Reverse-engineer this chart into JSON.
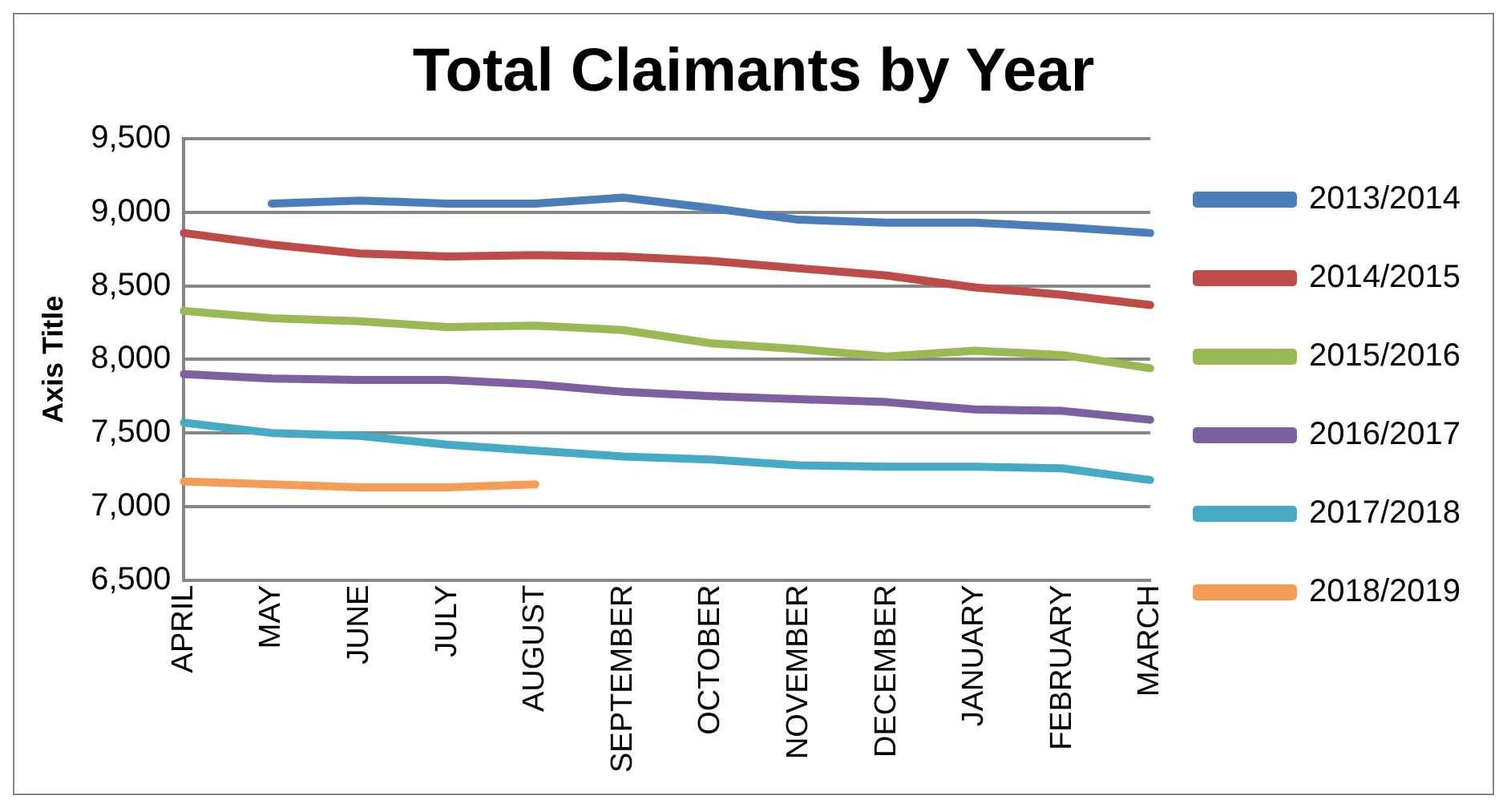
{
  "chart_data": {
    "type": "line",
    "title": "Total Claimants by Year",
    "ylabel": "Axis Title",
    "categories": [
      "APRIL",
      "MAY",
      "JUNE",
      "JULY",
      "AUGUST",
      "SEPTEMBER",
      "OCTOBER",
      "NOVEMBER",
      "DECEMBER",
      "JANUARY",
      "FEBRUARY",
      "MARCH"
    ],
    "series": [
      {
        "name": "2013/2014",
        "color": "#4a7ebb",
        "values": [
          null,
          9060,
          9080,
          9060,
          9060,
          9100,
          9030,
          8950,
          8930,
          8930,
          8900,
          8860
        ]
      },
      {
        "name": "2014/2015",
        "color": "#be4b48",
        "values": [
          8860,
          8780,
          8720,
          8700,
          8710,
          8700,
          8670,
          8620,
          8570,
          8490,
          8440,
          8370
        ]
      },
      {
        "name": "2015/2016",
        "color": "#98b954",
        "values": [
          8330,
          8280,
          8260,
          8220,
          8230,
          8200,
          8110,
          8070,
          8020,
          8060,
          8030,
          7940
        ]
      },
      {
        "name": "2016/2017",
        "color": "#7d60a0",
        "values": [
          7900,
          7870,
          7860,
          7860,
          7830,
          7780,
          7750,
          7730,
          7710,
          7660,
          7650,
          7590
        ]
      },
      {
        "name": "2017/2018",
        "color": "#46aac5",
        "values": [
          7570,
          7500,
          7480,
          7420,
          7380,
          7340,
          7320,
          7280,
          7270,
          7270,
          7260,
          7180
        ]
      },
      {
        "name": "2018/2019",
        "color": "#f59d56",
        "values": [
          7170,
          7150,
          7130,
          7130,
          7150,
          null,
          null,
          null,
          null,
          null,
          null,
          null
        ]
      }
    ],
    "ylim": [
      6500,
      9500
    ],
    "yticks": [
      {
        "value": 6500,
        "label": "6,500"
      },
      {
        "value": 7000,
        "label": "7,000"
      },
      {
        "value": 7500,
        "label": "7,500"
      },
      {
        "value": 8000,
        "label": "8,000"
      },
      {
        "value": 8500,
        "label": "8,500"
      },
      {
        "value": 9000,
        "label": "9,000"
      },
      {
        "value": 9500,
        "label": "9,500"
      }
    ],
    "grid": "y",
    "legend": "right",
    "marker": "none",
    "line_style": "solid"
  }
}
